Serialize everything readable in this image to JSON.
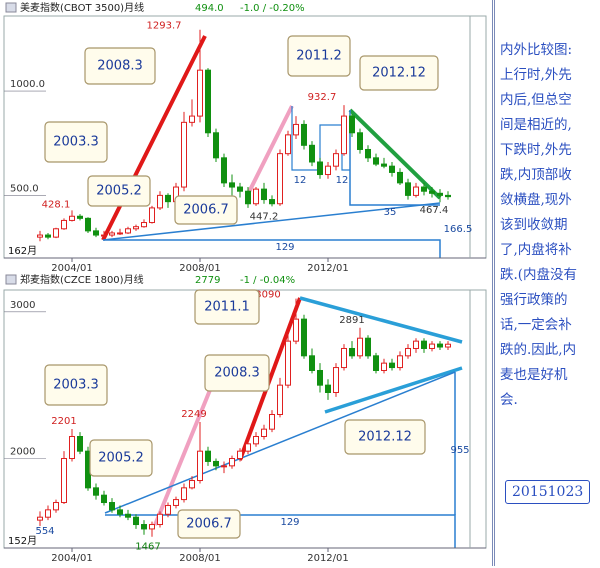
{
  "chart_data": [
    {
      "type": "candlestick",
      "title": "美麦指数(CBOT 3500)月线",
      "last": "494.0",
      "change": "-1.0 / -0.20%",
      "period": "162月",
      "categories": [
        null,
        null,
        null,
        null,
        "2004/01",
        null,
        null,
        null,
        null,
        null,
        null,
        null,
        null,
        null,
        null,
        null,
        null,
        null,
        null,
        null,
        "2008/01",
        null,
        null,
        null,
        null,
        null,
        null,
        null,
        null,
        null,
        null,
        null,
        null,
        null,
        null,
        null,
        "2012/01",
        null,
        null,
        null,
        null,
        null,
        null,
        null,
        null,
        null,
        null,
        null,
        null,
        null,
        null,
        null
      ],
      "open": [
        300,
        310,
        300,
        340,
        380,
        400,
        390,
        330,
        310,
        310,
        320,
        320,
        340,
        350,
        370,
        440,
        500,
        470,
        540,
        850,
        880,
        1100,
        800,
        680,
        560,
        540,
        520,
        460,
        530,
        480,
        460,
        700,
        790,
        840,
        740,
        660,
        600,
        640,
        700,
        880,
        800,
        720,
        680,
        650,
        640,
        610,
        560,
        500,
        540,
        520,
        510,
        500
      ],
      "high": [
        330,
        320,
        345,
        390,
        428.1,
        410,
        395,
        345,
        330,
        330,
        340,
        350,
        360,
        385,
        450,
        520,
        510,
        560,
        900,
        960,
        1293.7,
        1110,
        820,
        700,
        600,
        560,
        540,
        540,
        560,
        500,
        720,
        810,
        880,
        860,
        760,
        680,
        660,
        720,
        932.7,
        890,
        820,
        740,
        700,
        680,
        660,
        630,
        580,
        560,
        560,
        540,
        530,
        520
      ],
      "low": [
        280,
        290,
        295,
        335,
        375,
        380,
        320,
        300,
        295,
        300,
        310,
        315,
        330,
        345,
        365,
        430,
        440,
        460,
        520,
        830,
        850,
        780,
        660,
        540,
        500,
        490,
        440,
        450,
        460,
        447.2,
        450,
        690,
        770,
        720,
        640,
        580,
        580,
        620,
        690,
        780,
        700,
        660,
        640,
        630,
        590,
        550,
        480,
        490,
        500,
        490,
        467.4,
        480
      ],
      "close": [
        310,
        300,
        340,
        380,
        400,
        390,
        330,
        310,
        310,
        320,
        320,
        340,
        350,
        370,
        440,
        500,
        470,
        540,
        850,
        880,
        1100,
        800,
        680,
        560,
        540,
        520,
        460,
        530,
        480,
        460,
        700,
        790,
        840,
        740,
        660,
        600,
        640,
        700,
        880,
        800,
        720,
        680,
        650,
        640,
        610,
        560,
        500,
        540,
        520,
        510,
        500,
        494
      ],
      "ylim": [
        200,
        1350
      ],
      "yticks": [
        {
          "value": 500,
          "label": "500.0"
        },
        {
          "value": 1000,
          "label": "1000.0"
        }
      ],
      "up_color": "#e02020",
      "down_color": "#109010",
      "annotations": [
        "2008.3",
        "2011.2",
        "2012.12",
        "2003.3",
        "2005.2",
        "2006.7",
        "129",
        "35",
        "12",
        "12",
        "166.5"
      ]
    },
    {
      "type": "candlestick",
      "title": "郑麦指数(CZCE 1800)月线",
      "last": "2779",
      "change": "-1 / -0.04%",
      "period": "152月",
      "categories": [
        null,
        null,
        null,
        null,
        "2004/01",
        null,
        null,
        null,
        null,
        null,
        null,
        null,
        null,
        null,
        null,
        null,
        null,
        null,
        null,
        null,
        "2008/01",
        null,
        null,
        null,
        null,
        null,
        null,
        null,
        null,
        null,
        null,
        null,
        null,
        null,
        null,
        null,
        "2012/01",
        null,
        null,
        null,
        null,
        null,
        null,
        null,
        null,
        null,
        null,
        null,
        null,
        null,
        null,
        null
      ],
      "open": [
        1580,
        1600,
        1650,
        1700,
        2000,
        2150,
        2050,
        1800,
        1750,
        1700,
        1650,
        1620,
        1600,
        1550,
        1520,
        1550,
        1620,
        1680,
        1720,
        1800,
        1850,
        2050,
        1980,
        1950,
        1950,
        2000,
        2050,
        2100,
        2150,
        2200,
        2300,
        2500,
        2800,
        2950,
        2700,
        2600,
        2500,
        2450,
        2620,
        2750,
        2700,
        2820,
        2700,
        2600,
        2650,
        2620,
        2700,
        2750,
        2800,
        2750,
        2780,
        2760
      ],
      "high": [
        1640,
        1680,
        1720,
        2050,
        2201,
        2180,
        2080,
        1830,
        1780,
        1730,
        1680,
        1650,
        1620,
        1580,
        1570,
        1640,
        1700,
        1740,
        1830,
        1880,
        2249,
        2080,
        2000,
        1980,
        2020,
        2070,
        2120,
        2180,
        2230,
        2330,
        2550,
        2850,
        3090,
        2980,
        2750,
        2650,
        2540,
        2650,
        2780,
        2800,
        2891,
        2840,
        2720,
        2680,
        2680,
        2730,
        2780,
        2820,
        2820,
        2800,
        2800,
        2800
      ],
      "low": [
        1540,
        1580,
        1630,
        1690,
        1980,
        2030,
        1780,
        1720,
        1680,
        1630,
        1600,
        1580,
        1520,
        1480,
        1467,
        1530,
        1600,
        1660,
        1700,
        1790,
        1830,
        1950,
        1920,
        1900,
        1930,
        1980,
        2030,
        2080,
        2130,
        2180,
        2280,
        2480,
        2780,
        2680,
        2580,
        2450,
        2400,
        2420,
        2600,
        2680,
        2680,
        2680,
        2580,
        2580,
        2600,
        2600,
        2680,
        2720,
        2720,
        2730,
        2740,
        2740
      ],
      "close": [
        1600,
        1650,
        1700,
        2000,
        2150,
        2050,
        1800,
        1750,
        1700,
        1650,
        1620,
        1600,
        1550,
        1520,
        1550,
        1620,
        1680,
        1720,
        1800,
        1850,
        2050,
        1980,
        1950,
        1950,
        2000,
        2050,
        2100,
        2150,
        2200,
        2300,
        2500,
        2800,
        2950,
        2700,
        2600,
        2500,
        2450,
        2620,
        2750,
        2700,
        2820,
        2700,
        2600,
        2650,
        2620,
        2700,
        2750,
        2800,
        2750,
        2780,
        2760,
        2779
      ],
      "ylim": [
        1390,
        3135
      ],
      "yticks": [
        2000,
        3000
      ],
      "up_color": "#e02020",
      "down_color": "#109010",
      "annotations": [
        "2011.1",
        "2008.3",
        "2003.3",
        "2005.2",
        "2006.7",
        "2012.12",
        "129",
        "955",
        "554"
      ]
    }
  ],
  "note": {
    "lines": [
      "内外比较图:",
      "上行时,外先",
      "内后,但总空",
      "间是相近的,",
      "下跌时,外先",
      "跌,内顶部收",
      "敛横盘,现外",
      "该到收敛期",
      "了,内盘将补",
      "跌.(内盘没有",
      "强行政策的",
      "话,一定会补",
      "跌的.因此,内",
      "麦也是好机",
      "会."
    ],
    "date": "20151023"
  }
}
